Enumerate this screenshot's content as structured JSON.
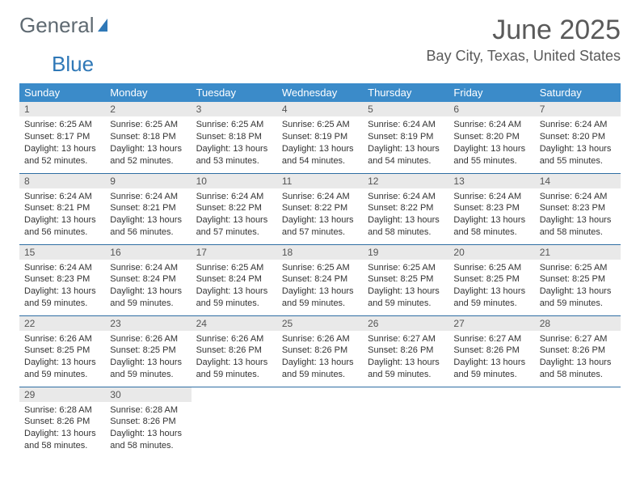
{
  "logo": {
    "text1": "General",
    "text2": "Blue",
    "color1": "#5f6a72",
    "color2": "#2f78b7"
  },
  "title": "June 2025",
  "location": "Bay City, Texas, United States",
  "colors": {
    "header_bg": "#3b8bc9",
    "header_text": "#ffffff",
    "daynum_bg": "#e9e9e9",
    "row_border": "#2f6ea3",
    "body_text": "#333333",
    "title_text": "#5a5a5a"
  },
  "day_headers": [
    "Sunday",
    "Monday",
    "Tuesday",
    "Wednesday",
    "Thursday",
    "Friday",
    "Saturday"
  ],
  "weeks": [
    [
      {
        "n": "1",
        "sunrise": "6:25 AM",
        "sunset": "8:17 PM",
        "daylight": "13 hours and 52 minutes."
      },
      {
        "n": "2",
        "sunrise": "6:25 AM",
        "sunset": "8:18 PM",
        "daylight": "13 hours and 52 minutes."
      },
      {
        "n": "3",
        "sunrise": "6:25 AM",
        "sunset": "8:18 PM",
        "daylight": "13 hours and 53 minutes."
      },
      {
        "n": "4",
        "sunrise": "6:25 AM",
        "sunset": "8:19 PM",
        "daylight": "13 hours and 54 minutes."
      },
      {
        "n": "5",
        "sunrise": "6:24 AM",
        "sunset": "8:19 PM",
        "daylight": "13 hours and 54 minutes."
      },
      {
        "n": "6",
        "sunrise": "6:24 AM",
        "sunset": "8:20 PM",
        "daylight": "13 hours and 55 minutes."
      },
      {
        "n": "7",
        "sunrise": "6:24 AM",
        "sunset": "8:20 PM",
        "daylight": "13 hours and 55 minutes."
      }
    ],
    [
      {
        "n": "8",
        "sunrise": "6:24 AM",
        "sunset": "8:21 PM",
        "daylight": "13 hours and 56 minutes."
      },
      {
        "n": "9",
        "sunrise": "6:24 AM",
        "sunset": "8:21 PM",
        "daylight": "13 hours and 56 minutes."
      },
      {
        "n": "10",
        "sunrise": "6:24 AM",
        "sunset": "8:22 PM",
        "daylight": "13 hours and 57 minutes."
      },
      {
        "n": "11",
        "sunrise": "6:24 AM",
        "sunset": "8:22 PM",
        "daylight": "13 hours and 57 minutes."
      },
      {
        "n": "12",
        "sunrise": "6:24 AM",
        "sunset": "8:22 PM",
        "daylight": "13 hours and 58 minutes."
      },
      {
        "n": "13",
        "sunrise": "6:24 AM",
        "sunset": "8:23 PM",
        "daylight": "13 hours and 58 minutes."
      },
      {
        "n": "14",
        "sunrise": "6:24 AM",
        "sunset": "8:23 PM",
        "daylight": "13 hours and 58 minutes."
      }
    ],
    [
      {
        "n": "15",
        "sunrise": "6:24 AM",
        "sunset": "8:23 PM",
        "daylight": "13 hours and 59 minutes."
      },
      {
        "n": "16",
        "sunrise": "6:24 AM",
        "sunset": "8:24 PM",
        "daylight": "13 hours and 59 minutes."
      },
      {
        "n": "17",
        "sunrise": "6:25 AM",
        "sunset": "8:24 PM",
        "daylight": "13 hours and 59 minutes."
      },
      {
        "n": "18",
        "sunrise": "6:25 AM",
        "sunset": "8:24 PM",
        "daylight": "13 hours and 59 minutes."
      },
      {
        "n": "19",
        "sunrise": "6:25 AM",
        "sunset": "8:25 PM",
        "daylight": "13 hours and 59 minutes."
      },
      {
        "n": "20",
        "sunrise": "6:25 AM",
        "sunset": "8:25 PM",
        "daylight": "13 hours and 59 minutes."
      },
      {
        "n": "21",
        "sunrise": "6:25 AM",
        "sunset": "8:25 PM",
        "daylight": "13 hours and 59 minutes."
      }
    ],
    [
      {
        "n": "22",
        "sunrise": "6:26 AM",
        "sunset": "8:25 PM",
        "daylight": "13 hours and 59 minutes."
      },
      {
        "n": "23",
        "sunrise": "6:26 AM",
        "sunset": "8:25 PM",
        "daylight": "13 hours and 59 minutes."
      },
      {
        "n": "24",
        "sunrise": "6:26 AM",
        "sunset": "8:26 PM",
        "daylight": "13 hours and 59 minutes."
      },
      {
        "n": "25",
        "sunrise": "6:26 AM",
        "sunset": "8:26 PM",
        "daylight": "13 hours and 59 minutes."
      },
      {
        "n": "26",
        "sunrise": "6:27 AM",
        "sunset": "8:26 PM",
        "daylight": "13 hours and 59 minutes."
      },
      {
        "n": "27",
        "sunrise": "6:27 AM",
        "sunset": "8:26 PM",
        "daylight": "13 hours and 59 minutes."
      },
      {
        "n": "28",
        "sunrise": "6:27 AM",
        "sunset": "8:26 PM",
        "daylight": "13 hours and 58 minutes."
      }
    ],
    [
      {
        "n": "29",
        "sunrise": "6:28 AM",
        "sunset": "8:26 PM",
        "daylight": "13 hours and 58 minutes."
      },
      {
        "n": "30",
        "sunrise": "6:28 AM",
        "sunset": "8:26 PM",
        "daylight": "13 hours and 58 minutes."
      },
      null,
      null,
      null,
      null,
      null
    ]
  ],
  "labels": {
    "sunrise": "Sunrise: ",
    "sunset": "Sunset: ",
    "daylight": "Daylight: "
  }
}
